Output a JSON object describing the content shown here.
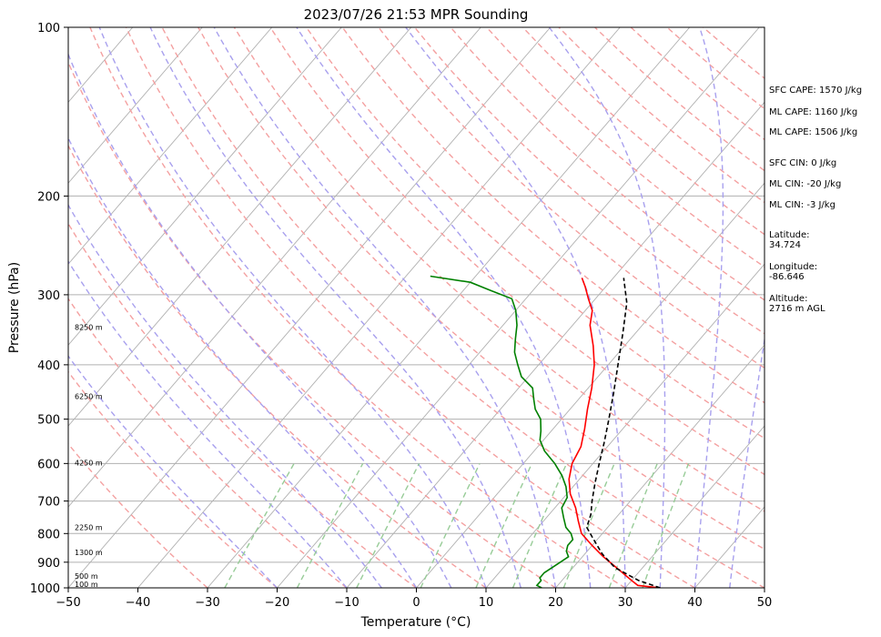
{
  "chart_data": {
    "type": "line",
    "title": "2023/07/26 21:53 MPR Sounding",
    "xlabel": "Temperature (°C)",
    "ylabel": "Pressure (hPa)",
    "xlim": [
      -50,
      50
    ],
    "ylim": [
      1000,
      100
    ],
    "y_scale": "log",
    "x_ticks": [
      "−50",
      "−40",
      "−30",
      "−20",
      "−10",
      "0",
      "10",
      "20",
      "30",
      "40",
      "50"
    ],
    "y_ticks": [
      "100",
      "200",
      "300",
      "400",
      "500",
      "600",
      "700",
      "800",
      "900",
      "1000"
    ],
    "series": [
      {
        "color": "#ff0000",
        "style": "solid",
        "points": [
          [
            35.0,
            1000
          ],
          [
            31.5,
            990
          ],
          [
            30.0,
            970
          ],
          [
            27.0,
            930
          ],
          [
            23.0,
            880
          ],
          [
            20.0,
            840
          ],
          [
            17.0,
            800
          ],
          [
            15.0,
            760
          ],
          [
            13.0,
            720
          ],
          [
            10.5,
            680
          ],
          [
            8.5,
            640
          ],
          [
            7.0,
            600
          ],
          [
            6.2,
            560
          ],
          [
            4.5,
            520
          ],
          [
            2.5,
            480
          ],
          [
            0.5,
            440
          ],
          [
            -2.0,
            400
          ],
          [
            -4.5,
            370
          ],
          [
            -7.5,
            340
          ],
          [
            -9.0,
            320
          ],
          [
            -11.0,
            305
          ],
          [
            -13.0,
            290
          ],
          [
            -14.5,
            280
          ]
        ]
      },
      {
        "color": "#008000",
        "style": "solid",
        "points": [
          [
            18.0,
            1000
          ],
          [
            17.0,
            990
          ],
          [
            17.0,
            970
          ],
          [
            16.5,
            960
          ],
          [
            16.5,
            940
          ],
          [
            17.0,
            920
          ],
          [
            17.5,
            900
          ],
          [
            18.0,
            880
          ],
          [
            17.0,
            860
          ],
          [
            16.5,
            840
          ],
          [
            16.5,
            820
          ],
          [
            15.5,
            800
          ],
          [
            14.0,
            780
          ],
          [
            12.5,
            750
          ],
          [
            11.0,
            720
          ],
          [
            10.5,
            690
          ],
          [
            9.0,
            660
          ],
          [
            7.0,
            630
          ],
          [
            4.5,
            600
          ],
          [
            1.5,
            570
          ],
          [
            -0.5,
            545
          ],
          [
            -1.5,
            525
          ],
          [
            -3.0,
            500
          ],
          [
            -5.0,
            480
          ],
          [
            -6.5,
            460
          ],
          [
            -8.0,
            440
          ],
          [
            -11.0,
            420
          ],
          [
            -13.0,
            400
          ],
          [
            -15.0,
            380
          ],
          [
            -16.5,
            360
          ],
          [
            -18.0,
            340
          ],
          [
            -20.0,
            320
          ],
          [
            -22.0,
            305
          ],
          [
            -26.0,
            295
          ],
          [
            -30.0,
            285
          ],
          [
            -36.5,
            278
          ]
        ]
      },
      {
        "color": "#000000",
        "style": "dashed",
        "points": [
          [
            35.0,
            1000
          ],
          [
            31.0,
            970
          ],
          [
            26.0,
            920
          ],
          [
            22.5,
            870
          ],
          [
            19.5,
            820
          ],
          [
            17.0,
            780
          ],
          [
            16.0,
            740
          ],
          [
            14.5,
            700
          ],
          [
            12.7,
            650
          ],
          [
            10.9,
            600
          ],
          [
            9.0,
            550
          ],
          [
            6.8,
            500
          ],
          [
            4.3,
            450
          ],
          [
            1.4,
            400
          ],
          [
            -1.9,
            350
          ],
          [
            -5.0,
            310
          ],
          [
            -8.5,
            280
          ]
        ]
      }
    ],
    "height_labels": [
      {
        "text": "100 m",
        "p": 985
      },
      {
        "text": "500 m",
        "p": 952
      },
      {
        "text": "1300 m",
        "p": 865
      },
      {
        "text": "2250 m",
        "p": 780
      },
      {
        "text": "4250 m",
        "p": 598
      },
      {
        "text": "6250 m",
        "p": 455
      },
      {
        "text": "8250 m",
        "p": 343
      }
    ],
    "annotations": [
      {
        "text": "SFC CAPE: 1570 J/kg"
      },
      {
        "text": "ML CAPE: 1160 J/kg"
      },
      {
        "text": "ML CAPE: 1506 J/kg"
      },
      {
        "text": "SFC CIN: 0 J/kg"
      },
      {
        "text": "ML CIN: -20 J/kg"
      },
      {
        "text": "ML CIN: -3 J/kg"
      },
      {
        "text": "Latitude:",
        "text2": "34.724"
      },
      {
        "text": "Longitude:",
        "text2": "-86.646"
      },
      {
        "text": "Altitude:",
        "text2": "2716 m AGL"
      }
    ],
    "colors": {
      "temperature": "#ff0000",
      "dewpoint": "#008000",
      "parcel": "#000000",
      "isotherm": "#b0b0b0",
      "dry_adiabat": "#f4a0a0",
      "moist_adiabat": "#a8a0ee",
      "mixing_ratio": "#98cc98"
    }
  }
}
